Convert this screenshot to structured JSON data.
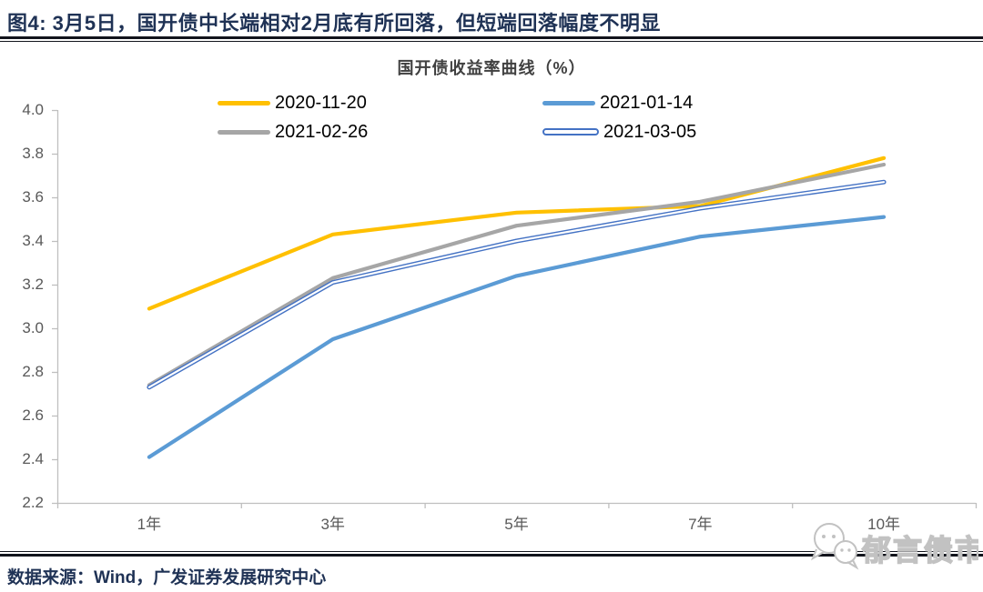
{
  "figure": {
    "title": "图4:  3月5日，国开债中长端相对2月底有所回落，但短端回落幅度不明显",
    "source": "数据来源：Wind，广发证券发展研究中心",
    "watermark_text": "郁言债市"
  },
  "chart_data": {
    "type": "line",
    "title": "国开债收益率曲线（%）",
    "categories": [
      "1年",
      "3年",
      "5年",
      "7年",
      "10年"
    ],
    "series": [
      {
        "name": "2020-11-20",
        "color": "#FFC000",
        "style": "solid",
        "values": [
          3.09,
          3.43,
          3.53,
          3.56,
          3.78
        ]
      },
      {
        "name": "2021-01-14",
        "color": "#5B9BD5",
        "style": "solid",
        "values": [
          2.41,
          2.95,
          3.24,
          3.42,
          3.51
        ]
      },
      {
        "name": "2021-02-26",
        "color": "#A6A6A6",
        "style": "solid",
        "values": [
          2.74,
          3.23,
          3.47,
          3.58,
          3.75
        ]
      },
      {
        "name": "2021-03-05",
        "color": "#4472C4",
        "style": "double",
        "values": [
          2.73,
          3.21,
          3.4,
          3.55,
          3.67
        ]
      }
    ],
    "ylim": [
      2.2,
      4.0
    ],
    "ytick_step": 0.2,
    "y_tick_labels": [
      "4.0",
      "3.8",
      "3.6",
      "3.4",
      "3.2",
      "3.0",
      "2.8",
      "2.6",
      "2.4",
      "2.2"
    ],
    "ylabel": "",
    "xlabel": "",
    "grid": false,
    "legend_position": "top-center-two-columns",
    "axis_color": "#BFBFBF",
    "tick_label_color": "#595959"
  }
}
